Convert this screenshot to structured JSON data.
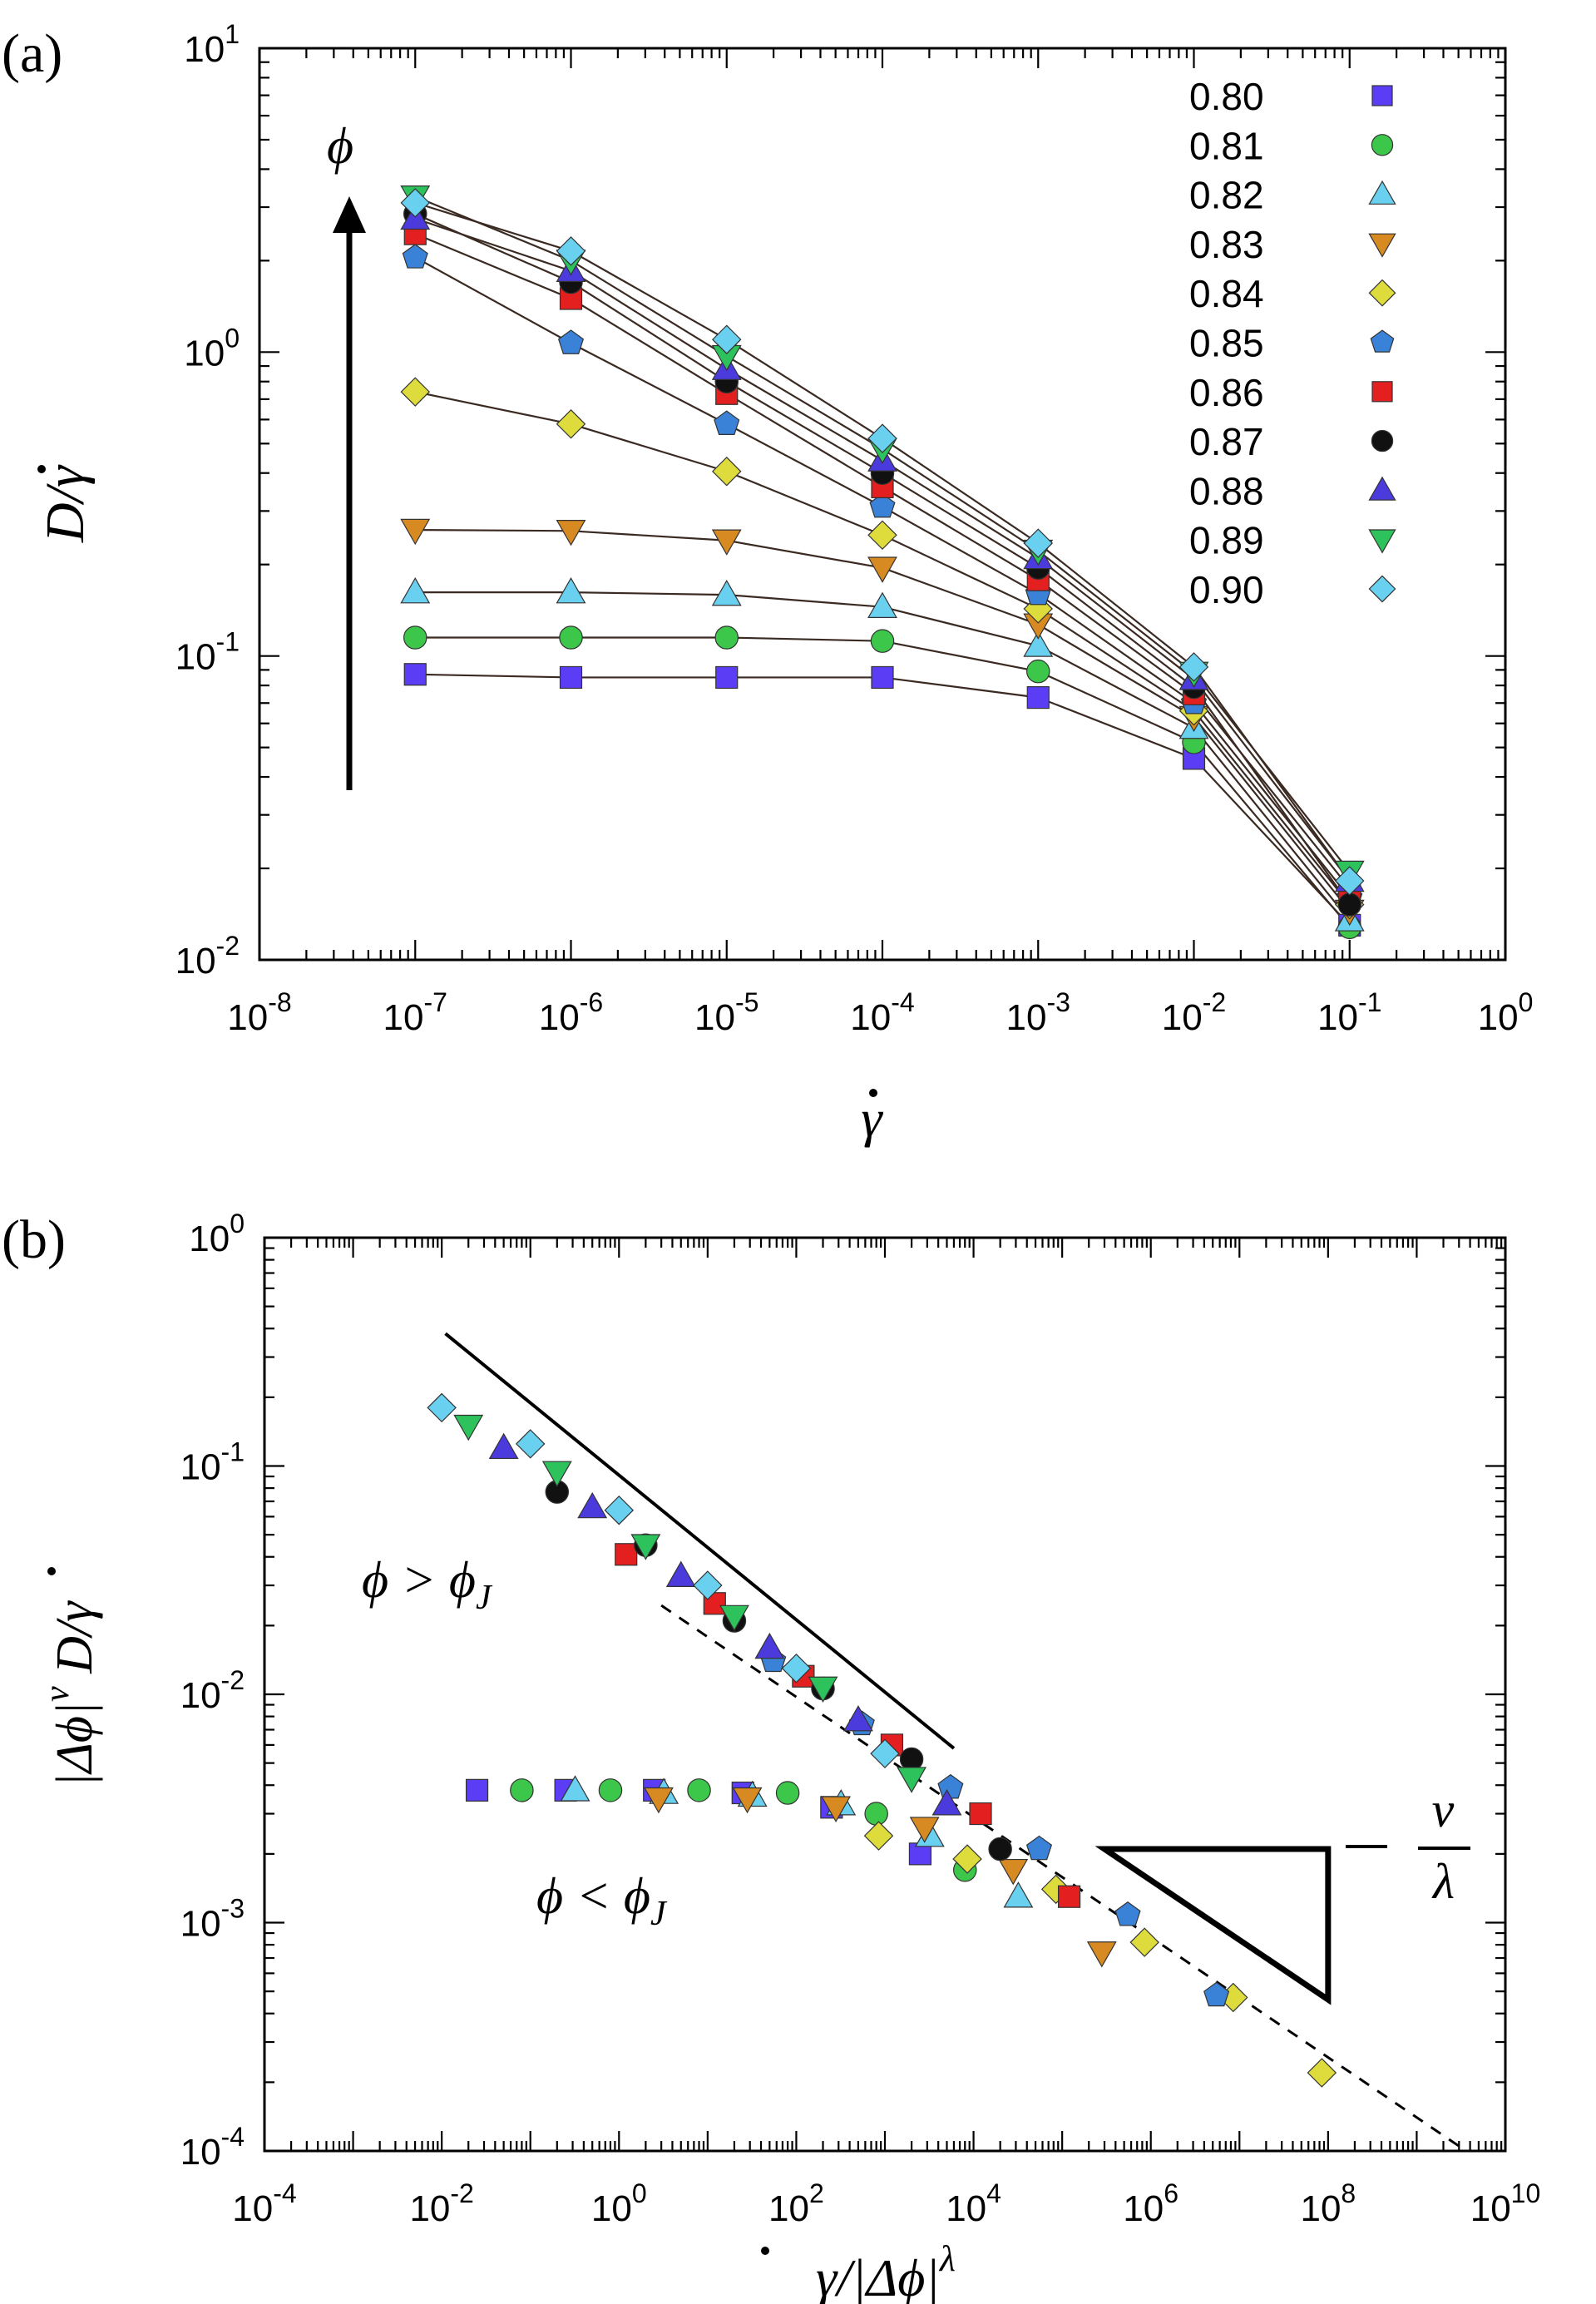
{
  "figure": {
    "panel_a_label": "(a)",
    "panel_b_label": "(b)"
  },
  "chart_data": [
    {
      "panel": "(a)",
      "type": "line",
      "xscale": "log",
      "yscale": "log",
      "xlim": [
        1e-08,
        1
      ],
      "ylim": [
        0.01,
        10
      ],
      "xticks": [
        {
          "value": 1e-08,
          "base": "10",
          "exp": "-8"
        },
        {
          "value": 1e-07,
          "base": "10",
          "exp": "-7"
        },
        {
          "value": 1e-06,
          "base": "10",
          "exp": "-6"
        },
        {
          "value": 1e-05,
          "base": "10",
          "exp": "-5"
        },
        {
          "value": 0.0001,
          "base": "10",
          "exp": "-4"
        },
        {
          "value": 0.001,
          "base": "10",
          "exp": "-3"
        },
        {
          "value": 0.01,
          "base": "10",
          "exp": "-2"
        },
        {
          "value": 0.1,
          "base": "10",
          "exp": "-1"
        },
        {
          "value": 1,
          "base": "10",
          "exp": "0"
        }
      ],
      "yticks": [
        {
          "value": 0.01,
          "base": "10",
          "exp": "-2"
        },
        {
          "value": 0.1,
          "base": "10",
          "exp": "-1"
        },
        {
          "value": 1,
          "base": "10",
          "exp": "0"
        },
        {
          "value": 10,
          "base": "10",
          "exp": "1"
        }
      ],
      "xlabel": "γ̇",
      "ylabel": "D/γ̇",
      "arrow_label": "ϕ",
      "legend_position": "top-right",
      "x": [
        1e-07,
        1e-06,
        1e-05,
        0.0001,
        0.001,
        0.01,
        0.1
      ],
      "series": [
        {
          "name": "0.80",
          "marker": "square",
          "color": "#5b3df5",
          "values": [
            0.087,
            0.085,
            0.085,
            0.085,
            0.073,
            0.046,
            0.013
          ]
        },
        {
          "name": "0.81",
          "marker": "circle",
          "color": "#3cc64a",
          "values": [
            0.115,
            0.115,
            0.115,
            0.112,
            0.089,
            0.052,
            0.0128
          ]
        },
        {
          "name": "0.82",
          "marker": "triangle-up",
          "color": "#6ad0f0",
          "values": [
            0.162,
            0.162,
            0.159,
            0.145,
            0.108,
            0.058,
            0.0135
          ]
        },
        {
          "name": "0.83",
          "marker": "triangle-down",
          "color": "#d88a22",
          "values": [
            0.26,
            0.258,
            0.24,
            0.195,
            0.127,
            0.063,
            0.0145
          ]
        },
        {
          "name": "0.84",
          "marker": "diamond",
          "color": "#dedb3c",
          "values": [
            0.74,
            0.58,
            0.405,
            0.25,
            0.143,
            0.066,
            0.0152
          ]
        },
        {
          "name": "0.85",
          "marker": "pentagon",
          "color": "#3a82d8",
          "values": [
            2.05,
            1.07,
            0.58,
            0.31,
            0.16,
            0.07,
            0.016
          ]
        },
        {
          "name": "0.86",
          "marker": "square",
          "color": "#e41f1f",
          "values": [
            2.45,
            1.5,
            0.73,
            0.36,
            0.178,
            0.075,
            0.0172
          ]
        },
        {
          "name": "0.87",
          "marker": "circle",
          "color": "#111111",
          "values": [
            2.85,
            1.7,
            0.8,
            0.4,
            0.195,
            0.079,
            0.0152
          ]
        },
        {
          "name": "0.88",
          "marker": "triangle-up",
          "color": "#4b3bdc",
          "values": [
            2.75,
            1.85,
            0.88,
            0.44,
            0.21,
            0.084,
            0.0182
          ]
        },
        {
          "name": "0.89",
          "marker": "triangle-down",
          "color": "#2ec25c",
          "values": [
            3.25,
            2.0,
            0.97,
            0.48,
            0.222,
            0.088,
            0.0195
          ]
        },
        {
          "name": "0.90",
          "marker": "diamond",
          "color": "#6ad0f0",
          "values": [
            3.1,
            2.15,
            1.1,
            0.52,
            0.235,
            0.092,
            0.0182
          ]
        }
      ]
    },
    {
      "panel": "(b)",
      "type": "scatter",
      "xscale": "log",
      "yscale": "log",
      "xlim": [
        0.0001,
        10000000000.0
      ],
      "ylim": [
        0.0001,
        1
      ],
      "xticks": [
        {
          "value": 0.0001,
          "base": "10",
          "exp": "-4"
        },
        {
          "value": 0.01,
          "base": "10",
          "exp": "-2"
        },
        {
          "value": 1,
          "base": "10",
          "exp": "0"
        },
        {
          "value": 100.0,
          "base": "10",
          "exp": "2"
        },
        {
          "value": 10000.0,
          "base": "10",
          "exp": "4"
        },
        {
          "value": 1000000.0,
          "base": "10",
          "exp": "6"
        },
        {
          "value": 100000000.0,
          "base": "10",
          "exp": "8"
        },
        {
          "value": 10000000000.0,
          "base": "10",
          "exp": "10"
        }
      ],
      "yticks": [
        {
          "value": 0.0001,
          "base": "10",
          "exp": "-4"
        },
        {
          "value": 0.001,
          "base": "10",
          "exp": "-3"
        },
        {
          "value": 0.01,
          "base": "10",
          "exp": "-2"
        },
        {
          "value": 0.1,
          "base": "10",
          "exp": "-1"
        },
        {
          "value": 1,
          "base": "10",
          "exp": "0"
        }
      ],
      "xlabel": "γ̇/|Δϕ|^λ",
      "ylabel": "|Δϕ|^ν D/γ̇",
      "annotation_above": "ϕ > ϕ_J",
      "annotation_below": "ϕ < ϕ_J",
      "slope_label": "−ν/λ",
      "solid_line": {
        "x": [
          0.011,
          6000
        ],
        "y": [
          0.38,
          0.0058
        ]
      },
      "dashed_line": {
        "x": [
          3,
          3000000000.0
        ],
        "y": [
          0.0245,
          0.000105
        ]
      },
      "slope_triangle": {
        "x": [
          300000,
          100000000,
          100000000
        ],
        "y": [
          0.0021,
          0.0021,
          0.00046
        ]
      },
      "series": [
        {
          "name": "0.80",
          "marker": "square",
          "color": "#5b3df5",
          "points": [
            [
              0.025,
              0.0038
            ],
            [
              0.25,
              0.0038
            ],
            [
              2.5,
              0.0038
            ],
            [
              25,
              0.0037
            ],
            [
              250,
              0.0032
            ],
            [
              2500,
              0.002
            ]
          ]
        },
        {
          "name": "0.81",
          "marker": "circle",
          "color": "#3cc64a",
          "points": [
            [
              0.08,
              0.0038
            ],
            [
              0.8,
              0.0038
            ],
            [
              8,
              0.0038
            ],
            [
              80,
              0.0037
            ],
            [
              800,
              0.003
            ],
            [
              8000,
              0.0017
            ]
          ]
        },
        {
          "name": "0.82",
          "marker": "triangle-up",
          "color": "#6ad0f0",
          "points": [
            [
              0.32,
              0.0038
            ],
            [
              3.2,
              0.0037
            ],
            [
              32,
              0.0036
            ],
            [
              320,
              0.0033
            ],
            [
              3200,
              0.0024
            ],
            [
              32000,
              0.0013
            ]
          ]
        },
        {
          "name": "0.83",
          "marker": "triangle-down",
          "color": "#d88a22",
          "points": [
            [
              2.8,
              0.0035
            ],
            [
              28,
              0.0035
            ],
            [
              280,
              0.0032
            ],
            [
              2800,
              0.0026
            ],
            [
              28000,
              0.0017
            ],
            [
              280000,
              0.00074
            ]
          ]
        },
        {
          "name": "0.84",
          "marker": "diamond",
          "color": "#dedb3c",
          "points": [
            [
              850,
              0.0024
            ],
            [
              8500,
              0.0019
            ],
            [
              85000,
              0.0014
            ],
            [
              850000,
              0.00082
            ],
            [
              8500000,
              0.00047
            ],
            [
              85000000,
              0.00022
            ]
          ]
        },
        {
          "name": "0.85",
          "marker": "pentagon",
          "color": "#3a82d8",
          "points": [
            [
              55,
              0.014
            ],
            [
              550,
              0.0074
            ],
            [
              5500,
              0.0039
            ],
            [
              55000,
              0.0021
            ],
            [
              550000,
              0.00108
            ],
            [
              5500000,
              0.00048
            ]
          ]
        },
        {
          "name": "0.86",
          "marker": "square",
          "color": "#e41f1f",
          "points": [
            [
              1.2,
              0.041
            ],
            [
              12,
              0.025
            ],
            [
              120,
              0.012
            ],
            [
              1200,
              0.006
            ],
            [
              12000,
              0.003
            ],
            [
              120000,
              0.0013
            ]
          ]
        },
        {
          "name": "0.87",
          "marker": "circle",
          "color": "#111111",
          "points": [
            [
              0.2,
              0.077
            ],
            [
              2,
              0.045
            ],
            [
              20,
              0.021
            ],
            [
              200,
              0.0106
            ],
            [
              2000,
              0.0052
            ],
            [
              20000,
              0.0021
            ]
          ]
        },
        {
          "name": "0.88",
          "marker": "triangle-up",
          "color": "#4b3bdc",
          "points": [
            [
              0.05,
              0.12
            ],
            [
              0.5,
              0.066
            ],
            [
              5,
              0.033
            ],
            [
              50,
              0.016
            ],
            [
              500,
              0.0077
            ],
            [
              5000,
              0.0033
            ]
          ]
        },
        {
          "name": "0.89",
          "marker": "triangle-down",
          "color": "#2ec25c",
          "points": [
            [
              0.02,
              0.15
            ],
            [
              0.2,
              0.094
            ],
            [
              2,
              0.045
            ],
            [
              20,
              0.022
            ],
            [
              200,
              0.0107
            ],
            [
              2000,
              0.0043
            ]
          ]
        },
        {
          "name": "0.90",
          "marker": "diamond",
          "color": "#6ad0f0",
          "points": [
            [
              0.01,
              0.18
            ],
            [
              0.1,
              0.125
            ],
            [
              1,
              0.064
            ],
            [
              10,
              0.03
            ],
            [
              100,
              0.013
            ],
            [
              1000,
              0.0055
            ]
          ]
        }
      ]
    }
  ]
}
